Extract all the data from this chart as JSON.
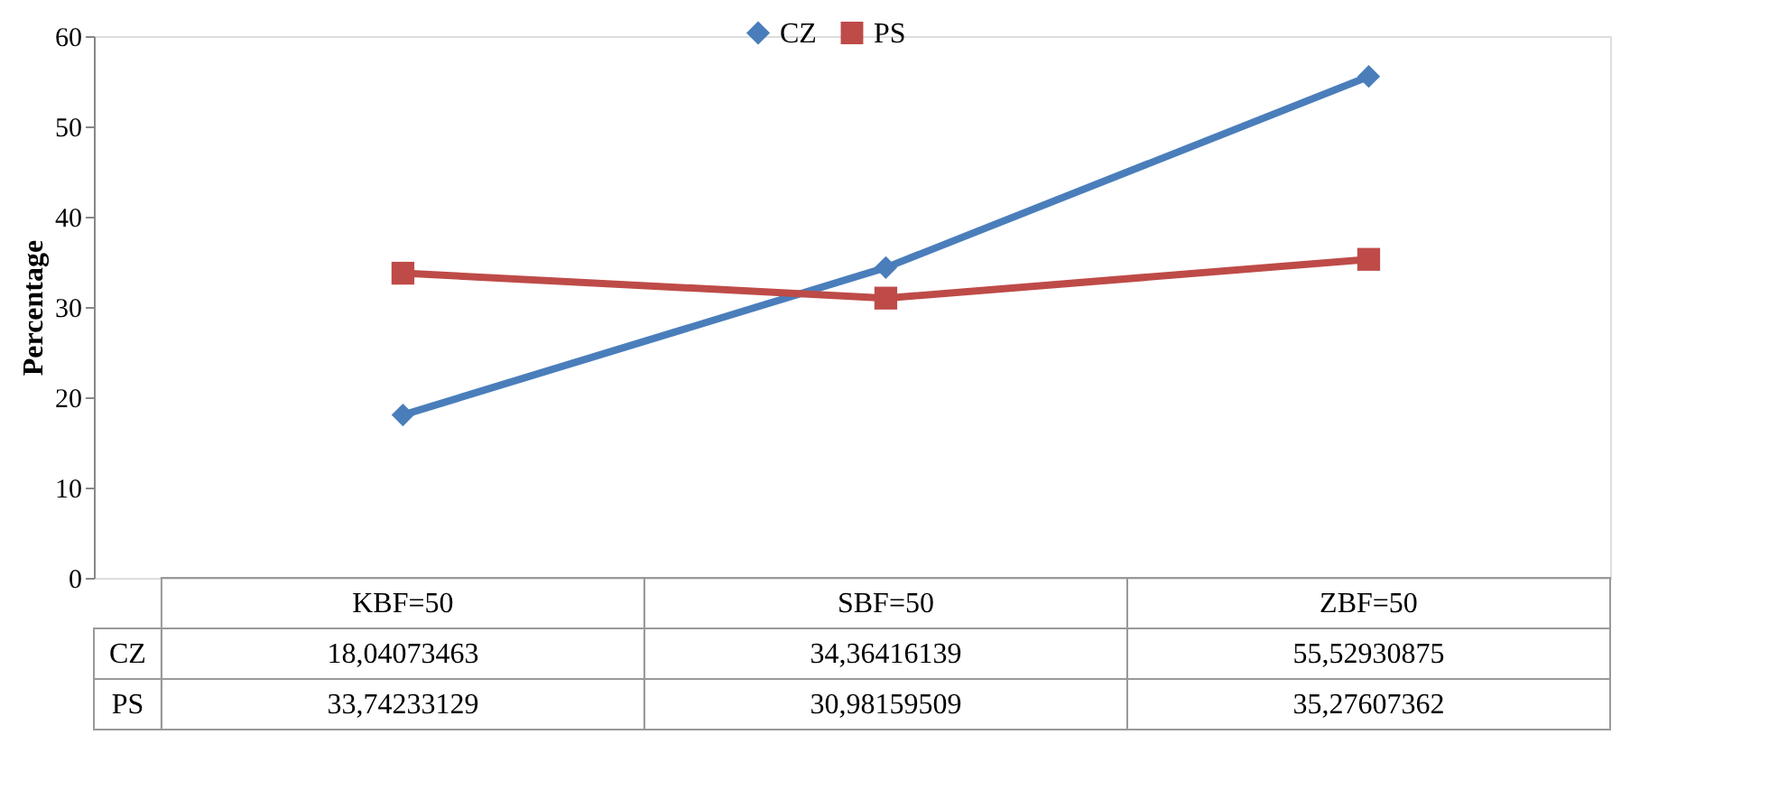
{
  "chart_data": {
    "type": "line",
    "ylabel": "Percentage",
    "categories": [
      "KBF=50",
      "SBF=50",
      "ZBF=50"
    ],
    "ylim": [
      0,
      60
    ],
    "yticks": [
      0,
      10,
      20,
      30,
      40,
      50,
      60
    ],
    "grid": false,
    "legend": "top",
    "line_style": "solid",
    "series": [
      {
        "name": "CZ",
        "color": "#4a7ebb",
        "marker": "diamond",
        "values": [
          18.04073463,
          34.36416139,
          55.52930875
        ],
        "value_labels": [
          "18,04073463",
          "34,36416139",
          "55,52930875"
        ]
      },
      {
        "name": "PS",
        "color": "#be4b48",
        "marker": "square",
        "values": [
          33.74233129,
          30.98159509,
          35.27607362
        ],
        "value_labels": [
          "33,74233129",
          "30,98159509",
          "35,27607362"
        ]
      }
    ]
  }
}
